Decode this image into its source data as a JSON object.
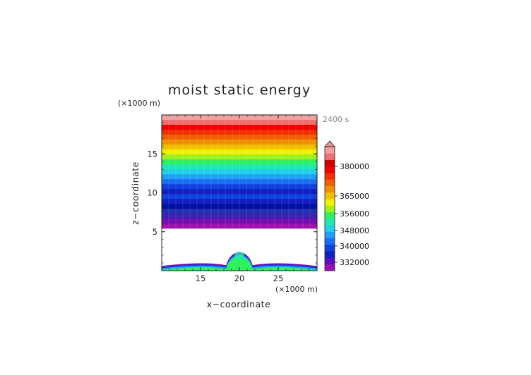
{
  "chart_data": {
    "type": "heatmap",
    "title": "moist static energy",
    "time_label": "2400 s",
    "xlabel": "x−coordinate",
    "ylabel": "z−coordinate",
    "x_unit": "(×1000 m)",
    "y_unit": "(×1000 m)",
    "xlim": [
      10,
      30
    ],
    "ylim": [
      0,
      20
    ],
    "xticks": [
      "15",
      "20",
      "25"
    ],
    "yticks": [
      "5",
      "10",
      "15"
    ],
    "colorbar_ticks": [
      "380000",
      "365000",
      "356000",
      "348000",
      "340000",
      "332000"
    ],
    "colorbar_bands": [
      "#9a10b5",
      "#5a10c0",
      "#1020c0",
      "#1040e0",
      "#1870f0",
      "#20a0f8",
      "#20d0e8",
      "#20e8b0",
      "#30f060",
      "#a0f020",
      "#f0f000",
      "#f0c000",
      "#f09000",
      "#f06000",
      "#f03000",
      "#f00000",
      "#d00000",
      "#f07070",
      "#f0a0a0"
    ],
    "colorbar_top_color": "#f09090",
    "upper_band_fills": [
      "#f0a0a0",
      "#f07070",
      "#f00000",
      "#f03000",
      "#f06000",
      "#f09000",
      "#f0c000",
      "#f0f000",
      "#a0f020",
      "#30f060",
      "#20e8b0",
      "#20d0e8",
      "#20a0f8",
      "#1870f0",
      "#1040e0",
      "#1020c0",
      "#1040e0",
      "#1020c0",
      "#0010a0",
      "#2030b0",
      "#4020b0",
      "#7010b0",
      "#a010b0"
    ],
    "lower_region": {
      "background": "#ffffff",
      "bubble_x": 20.0,
      "bubble_half_width": 1.1,
      "bubble_top": 2.9,
      "ridge_peaks": [
        [
          15.0,
          0.95
        ],
        [
          25.0,
          0.95
        ]
      ],
      "ground_top": 0.5,
      "fill_colors": [
        "#7010b0",
        "#1040e0",
        "#20a0f8",
        "#30f060"
      ]
    }
  }
}
